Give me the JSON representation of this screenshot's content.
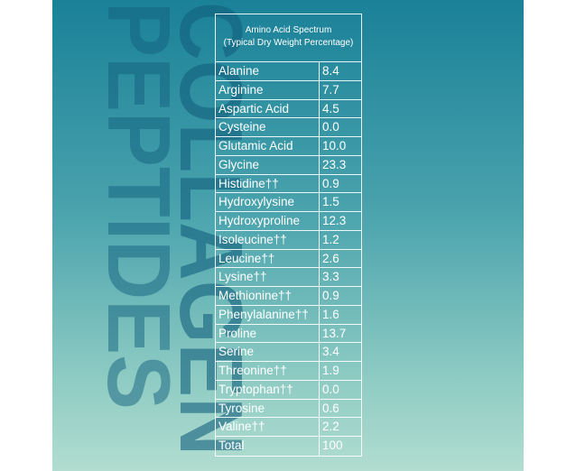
{
  "brand": {
    "line1": "COLLAGEN",
    "line2": "PEPTIDES"
  },
  "table": {
    "title": "Amino Acid Spectrum",
    "subtitle": "(Typical Dry Weight Percentage)",
    "rows": [
      [
        "Alanine",
        "8.4"
      ],
      [
        "Arginine",
        "7.7"
      ],
      [
        "Aspartic Acid",
        "4.5"
      ],
      [
        "Cysteine",
        "0.0"
      ],
      [
        "Glutamic Acid",
        "10.0"
      ],
      [
        "Glycine",
        "23.3"
      ],
      [
        "Histidine††",
        "0.9"
      ],
      [
        "Hydroxylysine",
        "1.5"
      ],
      [
        "Hydroxyproline",
        "12.3"
      ],
      [
        "Isoleucine††",
        "1.2"
      ],
      [
        "Leucine††",
        "2.6"
      ],
      [
        "Lysine††",
        "3.3"
      ],
      [
        "Methionine††",
        "0.9"
      ],
      [
        "Phenylalanine††",
        "1.6"
      ],
      [
        "Proline",
        "13.7"
      ],
      [
        "Serine",
        "3.4"
      ],
      [
        "Threonine††",
        "1.9"
      ],
      [
        "Tryptophan††",
        "0.0"
      ],
      [
        "Tyrosine",
        "0.6"
      ],
      [
        "Valine††",
        "2.2"
      ],
      [
        "Total",
        "100"
      ]
    ]
  }
}
